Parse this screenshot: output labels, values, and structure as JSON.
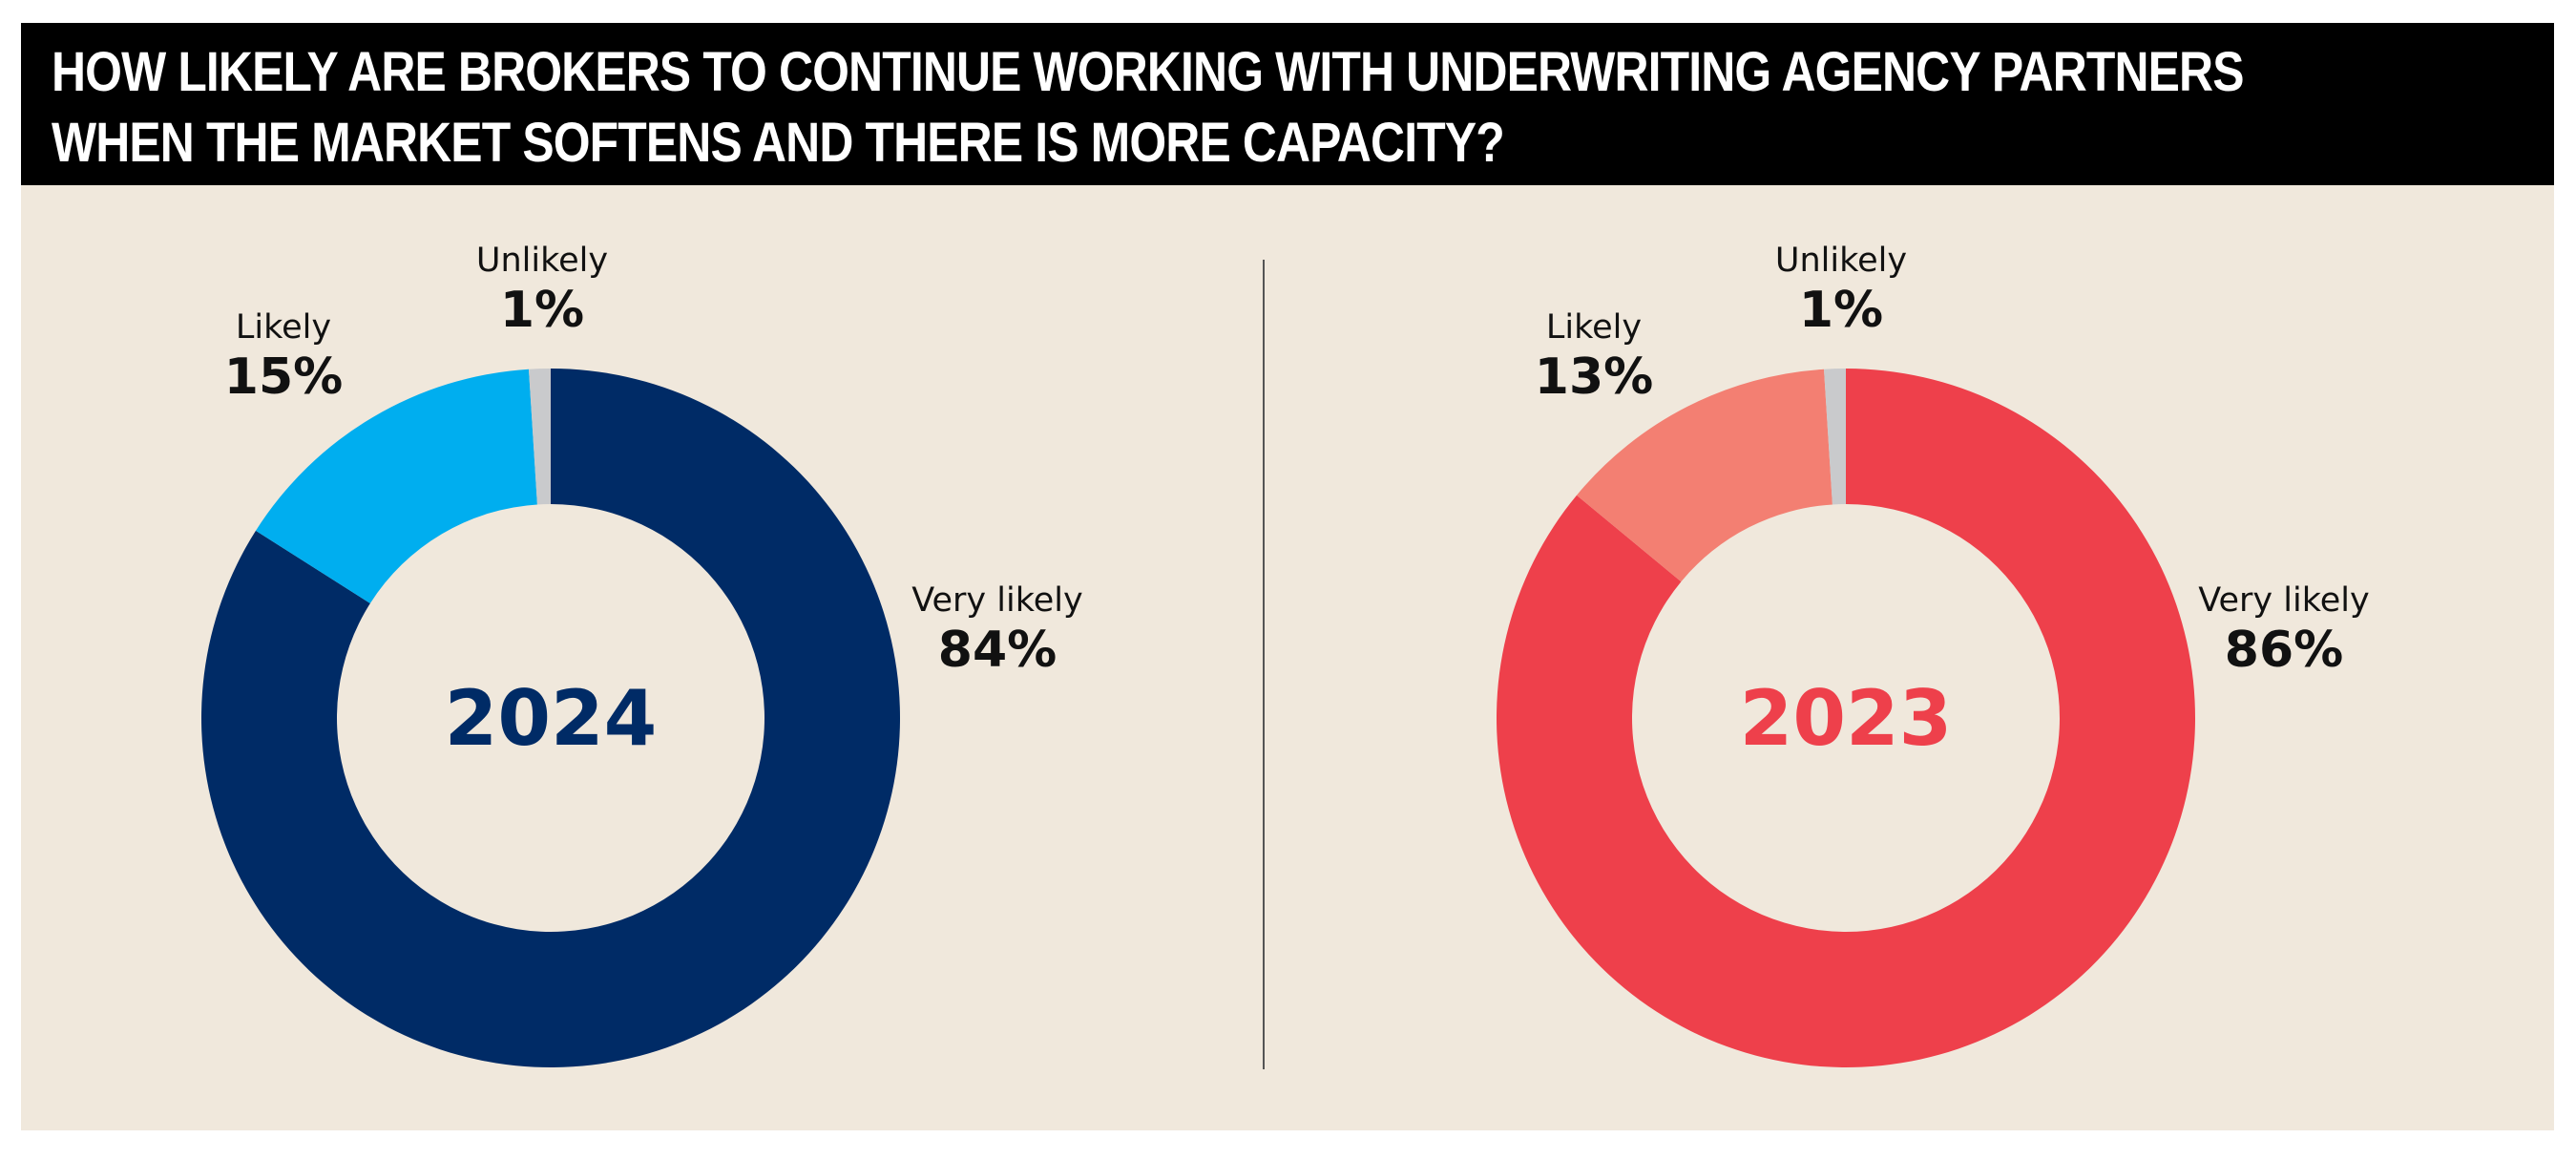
{
  "header": {
    "title_line1": "HOW LIKELY ARE BROKERS TO CONTINUE WORKING WITH UNDERWRITING AGENCY PARTNERS",
    "title_line2": "WHEN THE MARKET SOFTENS AND THERE IS MORE CAPACITY?"
  },
  "colors": {
    "header_bg": "#000000",
    "panel_bg": "#F0E8DC",
    "unlikely": "#C9CACC",
    "navy": "#002B66",
    "sky": "#00AEEF",
    "red": "#EE404B",
    "salmon": "#F37F72"
  },
  "chart_data": [
    {
      "type": "pie",
      "variant": "donut",
      "center_label": "2024",
      "center_color": "#002B66",
      "slices": [
        {
          "label": "Very likely",
          "value": 84,
          "display": "84%",
          "color": "#002B66"
        },
        {
          "label": "Likely",
          "value": 15,
          "display": "15%",
          "color": "#00AEEF"
        },
        {
          "label": "Unlikely",
          "value": 1,
          "display": "1%",
          "color": "#C9CACC"
        }
      ]
    },
    {
      "type": "pie",
      "variant": "donut",
      "center_label": "2023",
      "center_color": "#EE404B",
      "slices": [
        {
          "label": "Very likely",
          "value": 86,
          "display": "86%",
          "color": "#EE404B"
        },
        {
          "label": "Likely",
          "value": 13,
          "display": "13%",
          "color": "#F37F72"
        },
        {
          "label": "Unlikely",
          "value": 1,
          "display": "1%",
          "color": "#C9CACC"
        }
      ]
    }
  ]
}
